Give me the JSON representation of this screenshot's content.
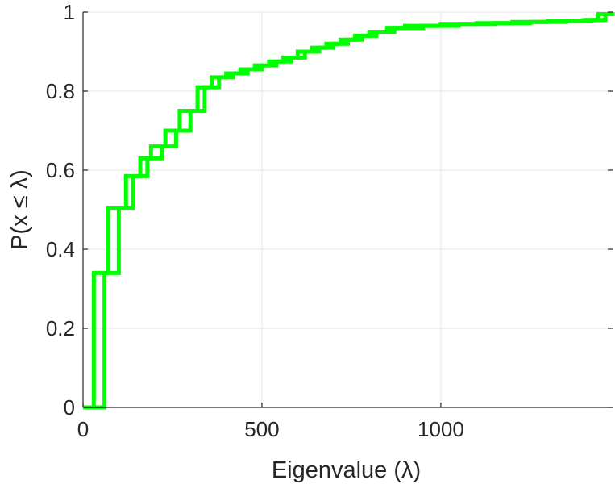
{
  "chart_data": {
    "type": "line",
    "title": "",
    "xlabel": "Eigenvalue (λ)",
    "ylabel": "P(x ≤ λ)",
    "xlim": [
      0,
      1480
    ],
    "ylim": [
      0,
      1
    ],
    "xticks": [
      0,
      500,
      1000
    ],
    "xtick_labels": [
      "0",
      "500",
      "1000"
    ],
    "yticks": [
      0,
      0.2,
      0.4,
      0.6,
      0.8,
      1
    ],
    "ytick_labels": [
      "0",
      "0.2",
      "0.4",
      "0.6",
      "0.8",
      "1"
    ],
    "grid": true,
    "legend": "none",
    "series_style": "stairs",
    "series": [
      {
        "color": "#00ff00",
        "x": [
          0,
          30,
          70,
          120,
          160,
          190,
          230,
          270,
          320,
          360,
          400,
          440,
          480,
          520,
          560,
          600,
          640,
          680,
          720,
          760,
          800,
          850,
          900,
          1000,
          1100,
          1200,
          1300,
          1400,
          1440,
          1480
        ],
        "y": [
          0,
          0.34,
          0.505,
          0.585,
          0.63,
          0.66,
          0.7,
          0.75,
          0.81,
          0.835,
          0.845,
          0.855,
          0.865,
          0.875,
          0.885,
          0.9,
          0.91,
          0.92,
          0.93,
          0.94,
          0.95,
          0.96,
          0.965,
          0.97,
          0.972,
          0.975,
          0.978,
          0.98,
          0.995,
          1.0
        ]
      },
      {
        "color": "#00ff00",
        "x": [
          0,
          60,
          100,
          140,
          180,
          220,
          260,
          300,
          340,
          380,
          420,
          460,
          500,
          540,
          580,
          620,
          660,
          700,
          740,
          780,
          820,
          870,
          950,
          1050,
          1150,
          1250,
          1350,
          1420,
          1460,
          1480
        ],
        "y": [
          0,
          0.34,
          0.505,
          0.585,
          0.63,
          0.66,
          0.7,
          0.75,
          0.81,
          0.835,
          0.845,
          0.855,
          0.865,
          0.875,
          0.885,
          0.9,
          0.91,
          0.92,
          0.93,
          0.94,
          0.95,
          0.96,
          0.965,
          0.97,
          0.972,
          0.975,
          0.978,
          0.98,
          0.995,
          1.0
        ]
      }
    ]
  }
}
